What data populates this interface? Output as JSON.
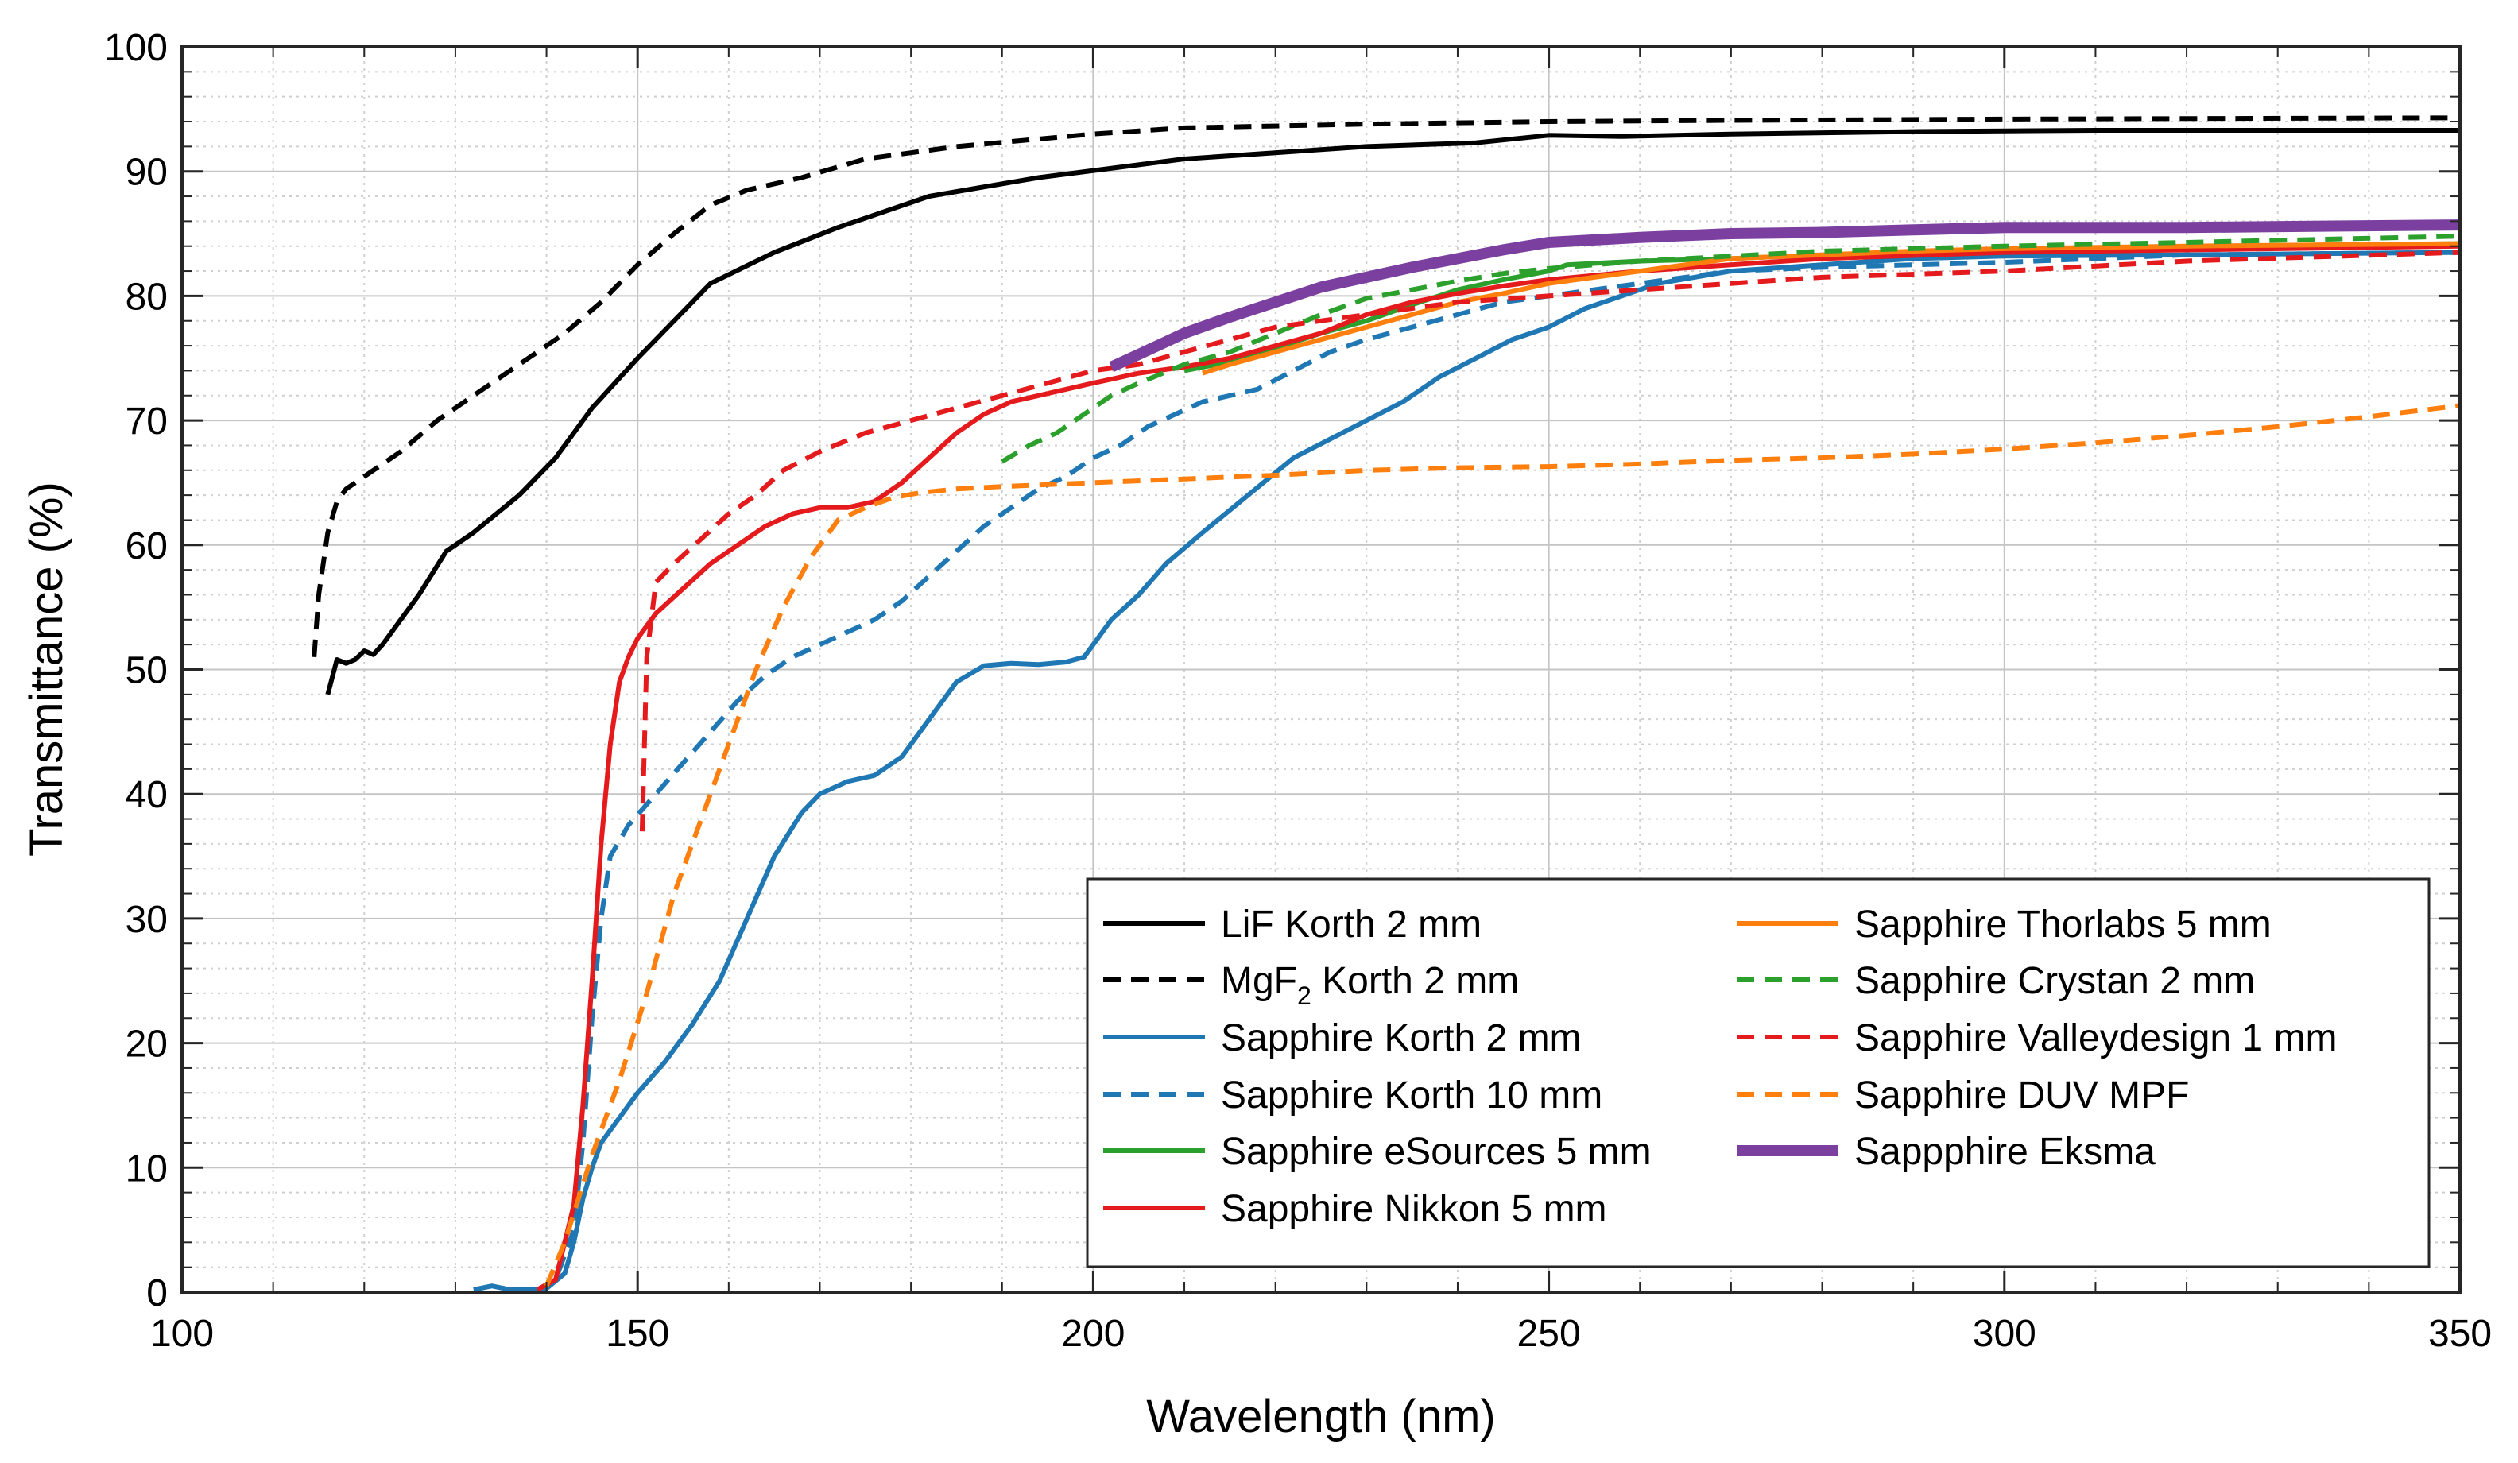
{
  "chart_data": {
    "type": "line",
    "title": "",
    "xlabel": "Wavelength (nm)",
    "ylabel": "Transmittance (%)",
    "xlim": [
      100,
      350
    ],
    "ylim": [
      0,
      100
    ],
    "xticks": [
      100,
      150,
      200,
      250,
      300,
      350
    ],
    "yticks": [
      0,
      10,
      20,
      30,
      40,
      50,
      60,
      70,
      80,
      90,
      100
    ],
    "grid": true,
    "minor_grid": true,
    "legend_position": "bottom-right",
    "series": [
      {
        "name": "LiF Korth 2 mm",
        "color": "#000000",
        "dash": "solid",
        "width": "normal",
        "x": [
          116,
          117,
          118,
          119,
          120,
          121,
          122,
          123,
          126,
          129,
          132,
          137,
          141,
          145,
          150,
          154,
          158,
          165,
          172,
          182,
          194,
          210,
          230,
          242,
          250,
          258,
          270,
          290,
          310,
          330,
          350
        ],
        "y": [
          48,
          50.8,
          50.5,
          50.8,
          51.5,
          51.2,
          52,
          53,
          56,
          59.5,
          61,
          64,
          67,
          71,
          75,
          78,
          81,
          83.5,
          85.5,
          88,
          89.5,
          91,
          92,
          92.3,
          92.9,
          92.8,
          93,
          93.2,
          93.3,
          93.3,
          93.3
        ]
      },
      {
        "name": "MgF₂ Korth 2 mm",
        "name_parts": [
          "MgF",
          "2",
          " Korth 2 mm"
        ],
        "color": "#000000",
        "dash": "dash",
        "width": "normal",
        "x": [
          114.5,
          115,
          116,
          117,
          118,
          120,
          124,
          128,
          133,
          138,
          142,
          146,
          150,
          154,
          158,
          162,
          168,
          175,
          185,
          200,
          210,
          230,
          250,
          270,
          300,
          350
        ],
        "y": [
          51,
          56,
          61,
          63.5,
          64.5,
          65.5,
          67.5,
          70,
          72.5,
          75,
          77,
          79.5,
          82.5,
          85,
          87.3,
          88.5,
          89.5,
          91,
          92,
          93,
          93.5,
          93.8,
          94,
          94.1,
          94.2,
          94.3
        ]
      },
      {
        "name": "Sapphire Korth 2 mm",
        "color": "#1f77b4",
        "dash": "solid",
        "width": "normal",
        "x": [
          132,
          134,
          136,
          138,
          140,
          142,
          143,
          144,
          145,
          146,
          148,
          150,
          153,
          156,
          159,
          162,
          165,
          168,
          170,
          173,
          176,
          179,
          182,
          185,
          188,
          191,
          194,
          197,
          199,
          200,
          202,
          205,
          208,
          212,
          217,
          222,
          226,
          230,
          234,
          238,
          242,
          246,
          250,
          254,
          258,
          262,
          266,
          270,
          280,
          290,
          300,
          320,
          350
        ],
        "y": [
          0.2,
          0.5,
          0.2,
          0.2,
          0.3,
          1.5,
          4,
          7.5,
          10,
          12,
          14,
          16,
          18.5,
          21.5,
          25,
          30,
          35,
          38.5,
          40,
          41,
          41.5,
          43,
          46,
          49,
          50.3,
          50.5,
          50.4,
          50.6,
          51,
          52,
          54,
          56,
          58.5,
          61,
          64,
          67,
          68.5,
          70,
          71.5,
          73.5,
          75,
          76.5,
          77.5,
          79,
          80,
          81,
          81.5,
          82,
          82.5,
          83,
          83.2,
          83.3,
          83.5
        ]
      },
      {
        "name": "Sapphire Korth 10 mm",
        "color": "#1f77b4",
        "dash": "dash",
        "width": "normal",
        "x": [
          139,
          141,
          143,
          144,
          145,
          146,
          147,
          149,
          152,
          155,
          158,
          161,
          164,
          167,
          170,
          173,
          176,
          179,
          182,
          185,
          188,
          191,
          194,
          197,
          200,
          203,
          206,
          209,
          212,
          215,
          218,
          222,
          226,
          230,
          235,
          240,
          245,
          250,
          255,
          260,
          270,
          280,
          300,
          320,
          350
        ],
        "y": [
          0.2,
          1,
          5,
          12,
          22,
          30,
          35,
          37.5,
          40,
          42.5,
          45,
          47.5,
          49.5,
          51,
          52,
          53,
          54,
          55.5,
          57.5,
          59.5,
          61.5,
          63,
          64.5,
          65.5,
          67,
          68,
          69.5,
          70.5,
          71.5,
          72,
          72.5,
          74,
          75.5,
          76.5,
          77.5,
          78.5,
          79.5,
          80,
          80.5,
          81,
          82,
          82.3,
          82.7,
          83.3,
          83.5
        ]
      },
      {
        "name": "Sapphire eSources 5 mm",
        "color": "#2ca02c",
        "dash": "solid",
        "width": "normal",
        "x": [
          210,
          215,
          220,
          225,
          230,
          235,
          240,
          245,
          250,
          252,
          260,
          270,
          280,
          300,
          350
        ],
        "y": [
          74,
          74.7,
          75.8,
          77,
          78,
          79.3,
          80.5,
          81.3,
          82,
          82.5,
          82.8,
          83,
          83.3,
          83.8,
          84.2
        ]
      },
      {
        "name": "Sapphire Nikkon 5 mm",
        "color": "#e41a1c",
        "dash": "solid",
        "width": "normal",
        "x": [
          139,
          141,
          143,
          144,
          145,
          146,
          147,
          148,
          149,
          150,
          152,
          155,
          158,
          161,
          164,
          167,
          170,
          173,
          176,
          179,
          182,
          185,
          188,
          191,
          194,
          197,
          200,
          205,
          210,
          215,
          220,
          225,
          230,
          235,
          240,
          245,
          250,
          260,
          270,
          280,
          300,
          350
        ],
        "y": [
          0.2,
          1,
          7,
          15,
          25,
          36,
          44,
          49,
          51,
          52.5,
          54.5,
          56.5,
          58.5,
          60,
          61.5,
          62.5,
          63,
          63,
          63.5,
          65,
          67,
          69,
          70.5,
          71.5,
          72,
          72.5,
          73,
          73.8,
          74.3,
          75,
          76,
          77,
          78.5,
          79.5,
          80.2,
          80.8,
          81.3,
          82,
          82.5,
          83,
          83.5,
          84
        ]
      },
      {
        "name": "Sapphire Thorlabs 5 mm",
        "color": "#ff7f0e",
        "dash": "solid",
        "width": "normal",
        "x": [
          212,
          215,
          220,
          225,
          230,
          235,
          240,
          245,
          250,
          255,
          260,
          265,
          270,
          280,
          290,
          300,
          320,
          350
        ],
        "y": [
          73.8,
          74.5,
          75.5,
          76.5,
          77.5,
          78.5,
          79.5,
          80.2,
          81,
          81.5,
          82,
          82.5,
          83,
          83.3,
          83.6,
          83.8,
          84,
          84.2
        ]
      },
      {
        "name": "Sapphire Crystan 2 mm",
        "color": "#2ca02c",
        "dash": "dash",
        "width": "normal",
        "x": [
          190,
          193,
          196,
          199,
          202,
          205,
          210,
          215,
          220,
          225,
          230,
          235,
          240,
          245,
          250,
          260,
          270,
          280,
          300,
          320,
          350
        ],
        "y": [
          66.7,
          68,
          69,
          70.5,
          72,
          73,
          74.5,
          75.5,
          77,
          78.5,
          79.8,
          80.5,
          81.2,
          81.8,
          82.2,
          82.8,
          83.2,
          83.6,
          84,
          84.3,
          84.8
        ]
      },
      {
        "name": "Sapphire Valleydesign 1 mm",
        "color": "#e41a1c",
        "dash": "dash",
        "width": "normal",
        "x": [
          150.5,
          151,
          152,
          154,
          157,
          160,
          163,
          166,
          170,
          175,
          180,
          185,
          190,
          195,
          200,
          205,
          210,
          215,
          220,
          230,
          240,
          250,
          260,
          270,
          280,
          300,
          320,
          350
        ],
        "y": [
          37,
          51,
          57,
          58.5,
          60.5,
          62.5,
          64,
          66,
          67.5,
          69,
          70,
          71,
          72,
          73,
          74,
          74.5,
          75.5,
          76.5,
          77.5,
          78.5,
          79.5,
          80,
          80.5,
          81,
          81.5,
          82,
          82.8,
          83.5
        ]
      },
      {
        "name": "Sapphire DUV MPF",
        "color": "#ff7f0e",
        "dash": "dash",
        "width": "normal",
        "x": [
          140,
          142,
          145,
          148,
          151,
          154,
          157,
          160,
          163,
          166,
          169,
          172,
          175,
          178,
          181,
          185,
          190,
          200,
          210,
          220,
          230,
          240,
          250,
          260,
          270,
          280,
          290,
          300,
          310,
          320,
          330,
          340,
          350
        ],
        "y": [
          0.5,
          4,
          11,
          17,
          24,
          32,
          38,
          44,
          50,
          55,
          59,
          62,
          63,
          63.8,
          64.2,
          64.5,
          64.7,
          65,
          65.3,
          65.6,
          66,
          66.2,
          66.3,
          66.5,
          66.8,
          67,
          67.3,
          67.7,
          68.2,
          68.8,
          69.5,
          70.3,
          71.2
        ]
      },
      {
        "name": "Sappphire Eksma",
        "color": "#7b3fa0",
        "dash": "solid",
        "width": "thick",
        "x": [
          202,
          205,
          210,
          215,
          220,
          225,
          230,
          235,
          240,
          245,
          250,
          255,
          260,
          270,
          280,
          290,
          300,
          320,
          350
        ],
        "y": [
          74.3,
          75.3,
          77,
          78.3,
          79.5,
          80.7,
          81.5,
          82.3,
          83,
          83.7,
          84.3,
          84.5,
          84.7,
          85,
          85.1,
          85.3,
          85.5,
          85.5,
          85.7
        ]
      }
    ]
  }
}
